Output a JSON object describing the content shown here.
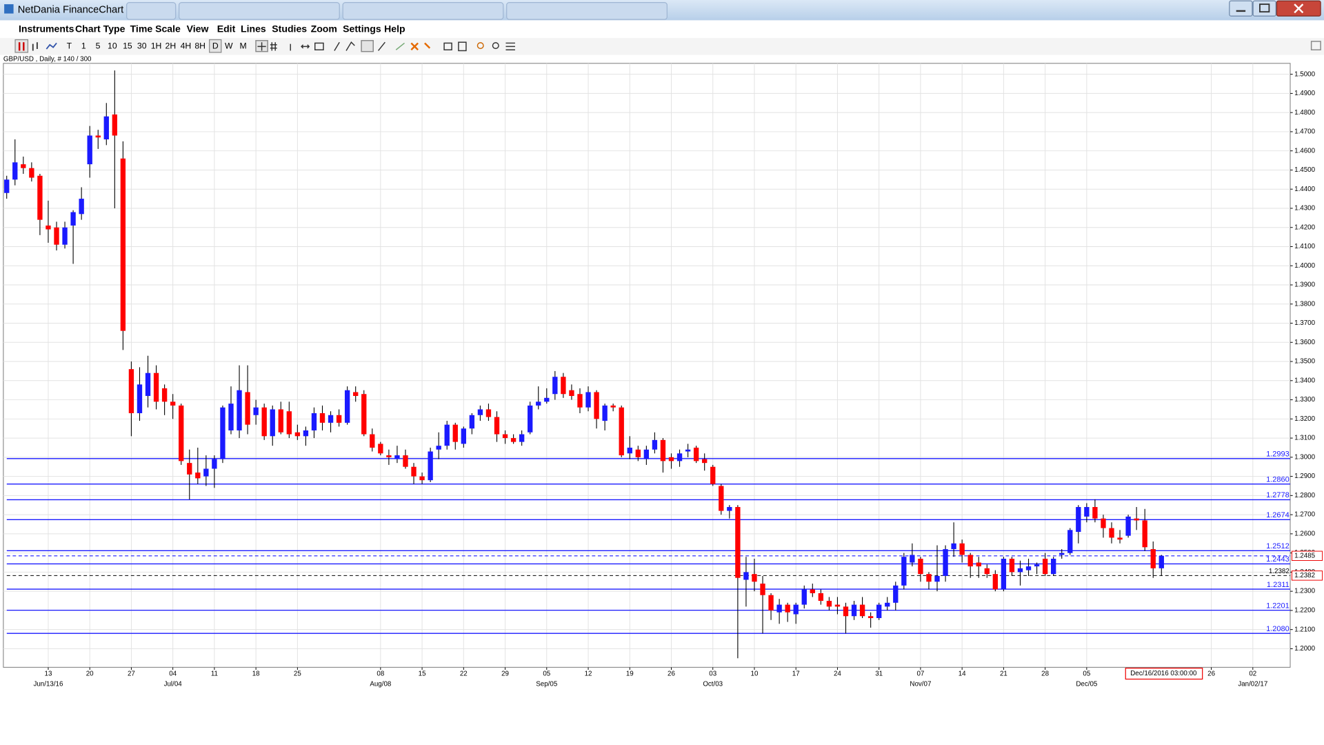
{
  "window": {
    "title": "NetDania FinanceChart"
  },
  "menu": [
    "Instruments",
    "Chart Type",
    "Time Scale",
    "View",
    "Edit",
    "Lines",
    "Studies",
    "Zoom",
    "Settings",
    "Help"
  ],
  "timeframes": [
    "T",
    "1",
    "5",
    "10",
    "15",
    "30",
    "1H",
    "2H",
    "4H",
    "8H",
    "D",
    "W",
    "M"
  ],
  "chart_data": {
    "type": "candlestick",
    "title": "GBP/USD , Daily, # 140 / 300",
    "up_color": "#1a1aff",
    "down_color": "#ff0000",
    "grid": true,
    "xlim": [
      -0.4,
      154.5
    ],
    "ylim": [
      1.1903,
      1.5057
    ],
    "xticks": [
      {
        "value": 5,
        "label": "13"
      },
      {
        "value": 10,
        "label": "20"
      },
      {
        "value": 15,
        "label": "27"
      },
      {
        "value": 20,
        "label": "04"
      },
      {
        "value": 25,
        "label": "11"
      },
      {
        "value": 30,
        "label": "18"
      },
      {
        "value": 35,
        "label": "25"
      },
      {
        "value": 45,
        "label": "08"
      },
      {
        "value": 50,
        "label": "15"
      },
      {
        "value": 55,
        "label": "22"
      },
      {
        "value": 60,
        "label": "29"
      },
      {
        "value": 65,
        "label": "05"
      },
      {
        "value": 70,
        "label": "12"
      },
      {
        "value": 75,
        "label": "19"
      },
      {
        "value": 80,
        "label": "26"
      },
      {
        "value": 85,
        "label": "03"
      },
      {
        "value": 90,
        "label": "10"
      },
      {
        "value": 95,
        "label": "17"
      },
      {
        "value": 100,
        "label": "24"
      },
      {
        "value": 105,
        "label": "31"
      },
      {
        "value": 110,
        "label": "07"
      },
      {
        "value": 115,
        "label": "14"
      },
      {
        "value": 120,
        "label": "21"
      },
      {
        "value": 125,
        "label": "28"
      },
      {
        "value": 130,
        "label": "05"
      },
      {
        "value": 145,
        "label": "26"
      },
      {
        "value": 150,
        "label": "02"
      }
    ],
    "xticks_major": [
      {
        "value": 5,
        "label": "Jun/13/16"
      },
      {
        "value": 20,
        "label": "Jul/04"
      },
      {
        "value": 45,
        "label": "Aug/08"
      },
      {
        "value": 65,
        "label": "Sep/05"
      },
      {
        "value": 85,
        "label": "Oct/03"
      },
      {
        "value": 110,
        "label": "Nov/07"
      },
      {
        "value": 130,
        "label": "Dec/05"
      },
      {
        "value": 150,
        "label": "Jan/02/17"
      }
    ],
    "yticks": [
      {
        "value": 1.2,
        "label": "1.2000"
      },
      {
        "value": 1.21,
        "label": "1.2100"
      },
      {
        "value": 1.22,
        "label": "1.2200"
      },
      {
        "value": 1.23,
        "label": "1.2300"
      },
      {
        "value": 1.24,
        "label": "1.2400"
      },
      {
        "value": 1.25,
        "label": "1.2500"
      },
      {
        "value": 1.26,
        "label": "1.2600"
      },
      {
        "value": 1.27,
        "label": "1.2700"
      },
      {
        "value": 1.28,
        "label": "1.2800"
      },
      {
        "value": 1.29,
        "label": "1.2900"
      },
      {
        "value": 1.3,
        "label": "1.3000"
      },
      {
        "value": 1.31,
        "label": "1.3100"
      },
      {
        "value": 1.32,
        "label": "1.3200"
      },
      {
        "value": 1.33,
        "label": "1.3300"
      },
      {
        "value": 1.34,
        "label": "1.3400"
      },
      {
        "value": 1.35,
        "label": "1.3500"
      },
      {
        "value": 1.36,
        "label": "1.3600"
      },
      {
        "value": 1.37,
        "label": "1.3700"
      },
      {
        "value": 1.38,
        "label": "1.3800"
      },
      {
        "value": 1.39,
        "label": "1.3900"
      },
      {
        "value": 1.4,
        "label": "1.4000"
      },
      {
        "value": 1.41,
        "label": "1.4100"
      },
      {
        "value": 1.42,
        "label": "1.4200"
      },
      {
        "value": 1.43,
        "label": "1.4300"
      },
      {
        "value": 1.44,
        "label": "1.4400"
      },
      {
        "value": 1.45,
        "label": "1.4500"
      },
      {
        "value": 1.46,
        "label": "1.4600"
      },
      {
        "value": 1.47,
        "label": "1.4700"
      },
      {
        "value": 1.48,
        "label": "1.4800"
      },
      {
        "value": 1.49,
        "label": "1.4900"
      },
      {
        "value": 1.5,
        "label": "1.5000"
      }
    ],
    "levels": [
      1.2993,
      {
        "value": 1.286,
        "label": "1.2860"
      },
      1.2778,
      1.2674,
      1.2512,
      1.2443,
      1.2311,
      1.2201,
      {
        "value": 1.208,
        "label": "1.2080"
      }
    ],
    "level_color": "#1a1aff",
    "price_lines": [
      {
        "value": 1.2485,
        "color": "#1a1aff",
        "marker": 1.2485
      },
      {
        "value": 1.2382,
        "color": "#000000",
        "marker": 1.2382
      }
    ],
    "cursor_label": "Dec/16/2016 03:00:00",
    "open": [
      1.438,
      1.445,
      1.453,
      1.451,
      1.447,
      1.421,
      1.42,
      1.411,
      1.421,
      1.427,
      1.453,
      1.468,
      1.466,
      1.479,
      1.456,
      1.346,
      1.323,
      1.332,
      1.344,
      1.336,
      1.329,
      1.327,
      1.297,
      1.292,
      1.29,
      1.294,
      1.299,
      1.314,
      1.314,
      1.334,
      1.322,
      1.326,
      1.311,
      1.325,
      1.324,
      1.313,
      1.311,
      1.314,
      1.323,
      1.318,
      1.322,
      1.318,
      1.334,
      1.333,
      1.312,
      1.307,
      1.301,
      1.299,
      1.301,
      1.295,
      1.29,
      1.288,
      1.304,
      1.306,
      1.317,
      1.307,
      1.315,
      1.322,
      1.325,
      1.321,
      1.312,
      1.31,
      1.308,
      1.313,
      1.327,
      1.329,
      1.333,
      1.342,
      1.335,
      1.333,
      1.326,
      1.334,
      1.319,
      1.327,
      1.326,
      1.302,
      1.304,
      1.299,
      1.304,
      1.309,
      1.3,
      1.298,
      1.303,
      1.305,
      1.299,
      1.295,
      1.285,
      1.272,
      1.274,
      1.236,
      1.239,
      1.234,
      1.228,
      1.219,
      1.223,
      1.218,
      1.223,
      1.231,
      1.229,
      1.225,
      1.223,
      1.222,
      1.217,
      1.223,
      1.217,
      1.216,
      1.222,
      1.224,
      1.233,
      1.245,
      1.247,
      1.239,
      1.235,
      1.238,
      1.252,
      1.255,
      1.249,
      1.245,
      1.242,
      1.239,
      1.231,
      1.247,
      1.24,
      1.241,
      1.243,
      1.247,
      1.239,
      1.249,
      1.25,
      1.261,
      1.269,
      1.274,
      1.268,
      1.263,
      1.258,
      1.259,
      1.268,
      1.267,
      1.252,
      1.242
    ],
    "high": [
      1.447,
      1.466,
      1.457,
      1.454,
      1.448,
      1.434,
      1.423,
      1.423,
      1.429,
      1.441,
      1.473,
      1.471,
      1.485,
      1.502,
      1.465,
      1.35,
      1.347,
      1.353,
      1.348,
      1.338,
      1.333,
      1.328,
      1.304,
      1.305,
      1.301,
      1.301,
      1.327,
      1.337,
      1.348,
      1.348,
      1.33,
      1.328,
      1.327,
      1.329,
      1.329,
      1.317,
      1.316,
      1.326,
      1.327,
      1.324,
      1.325,
      1.337,
      1.337,
      1.335,
      1.315,
      1.308,
      1.304,
      1.306,
      1.304,
      1.297,
      1.292,
      1.305,
      1.313,
      1.319,
      1.318,
      1.316,
      1.323,
      1.327,
      1.328,
      1.324,
      1.314,
      1.312,
      1.314,
      1.329,
      1.337,
      1.336,
      1.345,
      1.344,
      1.338,
      1.336,
      1.337,
      1.335,
      1.328,
      1.328,
      1.327,
      1.311,
      1.306,
      1.306,
      1.313,
      1.31,
      1.302,
      1.304,
      1.307,
      1.306,
      1.302,
      1.296,
      1.286,
      1.275,
      1.275,
      1.248,
      1.247,
      1.238,
      1.229,
      1.226,
      1.224,
      1.224,
      1.233,
      1.234,
      1.231,
      1.227,
      1.227,
      1.224,
      1.225,
      1.227,
      1.219,
      1.224,
      1.227,
      1.235,
      1.25,
      1.255,
      1.248,
      1.24,
      1.254,
      1.254,
      1.266,
      1.257,
      1.25,
      1.248,
      1.244,
      1.241,
      1.248,
      1.248,
      1.246,
      1.247,
      1.245,
      1.25,
      1.248,
      1.252,
      1.263,
      1.275,
      1.276,
      1.278,
      1.27,
      1.266,
      1.262,
      1.27,
      1.274,
      1.273,
      1.256,
      1.249
    ],
    "low": [
      1.435,
      1.442,
      1.448,
      1.444,
      1.416,
      1.412,
      1.408,
      1.409,
      1.401,
      1.424,
      1.446,
      1.461,
      1.463,
      1.43,
      1.356,
      1.311,
      1.319,
      1.326,
      1.325,
      1.322,
      1.32,
      1.296,
      1.278,
      1.286,
      1.285,
      1.284,
      1.297,
      1.312,
      1.31,
      1.312,
      1.317,
      1.309,
      1.306,
      1.312,
      1.31,
      1.309,
      1.306,
      1.31,
      1.314,
      1.313,
      1.316,
      1.317,
      1.329,
      1.311,
      1.303,
      1.301,
      1.296,
      1.297,
      1.294,
      1.286,
      1.286,
      1.287,
      1.299,
      1.304,
      1.304,
      1.305,
      1.312,
      1.319,
      1.319,
      1.308,
      1.307,
      1.307,
      1.306,
      1.312,
      1.325,
      1.328,
      1.33,
      1.331,
      1.33,
      1.323,
      1.324,
      1.315,
      1.314,
      1.324,
      1.3,
      1.299,
      1.298,
      1.296,
      1.302,
      1.292,
      1.294,
      1.295,
      1.3,
      1.297,
      1.293,
      1.285,
      1.27,
      1.268,
      1.195,
      1.222,
      1.23,
      1.208,
      1.215,
      1.213,
      1.214,
      1.213,
      1.221,
      1.227,
      1.223,
      1.22,
      1.218,
      1.208,
      1.215,
      1.216,
      1.211,
      1.215,
      1.22,
      1.22,
      1.231,
      1.243,
      1.235,
      1.231,
      1.23,
      1.235,
      1.248,
      1.245,
      1.237,
      1.237,
      1.237,
      1.23,
      1.23,
      1.238,
      1.233,
      1.238,
      1.239,
      1.238,
      1.238,
      1.247,
      1.249,
      1.255,
      1.266,
      1.266,
      1.258,
      1.255,
      1.255,
      1.258,
      1.262,
      1.251,
      1.237,
      1.238
    ],
    "close": [
      1.445,
      1.454,
      1.451,
      1.446,
      1.424,
      1.419,
      1.411,
      1.42,
      1.428,
      1.435,
      1.468,
      1.467,
      1.478,
      1.468,
      1.366,
      1.323,
      1.338,
      1.344,
      1.329,
      1.329,
      1.327,
      1.298,
      1.291,
      1.289,
      1.294,
      1.299,
      1.326,
      1.328,
      1.335,
      1.317,
      1.326,
      1.311,
      1.325,
      1.313,
      1.312,
      1.311,
      1.314,
      1.323,
      1.318,
      1.322,
      1.318,
      1.335,
      1.332,
      1.312,
      1.305,
      1.302,
      1.3,
      1.301,
      1.295,
      1.29,
      1.288,
      1.303,
      1.306,
      1.317,
      1.308,
      1.315,
      1.322,
      1.325,
      1.321,
      1.312,
      1.31,
      1.308,
      1.312,
      1.327,
      1.329,
      1.331,
      1.342,
      1.333,
      1.332,
      1.326,
      1.334,
      1.32,
      1.327,
      1.326,
      1.301,
      1.305,
      1.3,
      1.304,
      1.309,
      1.298,
      1.298,
      1.302,
      1.304,
      1.298,
      1.297,
      1.286,
      1.272,
      1.274,
      1.237,
      1.24,
      1.235,
      1.228,
      1.22,
      1.223,
      1.219,
      1.223,
      1.231,
      1.229,
      1.225,
      1.222,
      1.222,
      1.217,
      1.223,
      1.217,
      1.216,
      1.223,
      1.224,
      1.233,
      1.248,
      1.249,
      1.239,
      1.235,
      1.238,
      1.252,
      1.255,
      1.249,
      1.243,
      1.243,
      1.239,
      1.231,
      1.247,
      1.24,
      1.242,
      1.243,
      1.244,
      1.239,
      1.247,
      1.25,
      1.262,
      1.274,
      1.274,
      1.268,
      1.263,
      1.258,
      1.257,
      1.269,
      1.267,
      1.253,
      1.242,
      1.2485
    ]
  }
}
